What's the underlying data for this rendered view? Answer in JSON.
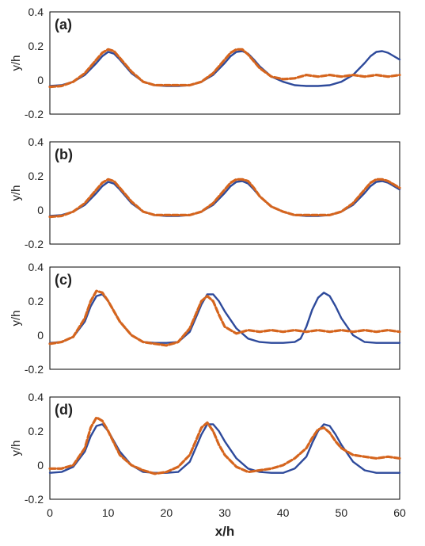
{
  "figure": {
    "xlabel": "x/h",
    "x_ticks": [
      "0",
      "10",
      "20",
      "30",
      "40",
      "50",
      "60"
    ]
  },
  "colors": {
    "model": "#2e4a9b",
    "experiment": "#d5651e",
    "frame": "#000000"
  },
  "chart_data": [
    {
      "type": "line",
      "panel_label": "(a)",
      "ylabel": "y/h",
      "xlim": [
        0,
        60
      ],
      "ylim": [
        -0.2,
        0.4
      ],
      "y_ticks": [
        "0.4",
        "0.2",
        "0",
        "-0.2"
      ],
      "series": [
        {
          "style": "solid",
          "x": [
            0,
            2,
            4,
            6,
            8,
            9,
            10,
            11,
            12,
            14,
            16,
            18,
            20,
            22,
            24,
            26,
            28,
            30,
            31,
            32,
            33,
            34,
            35,
            36,
            38,
            40,
            42,
            44,
            46,
            48,
            50,
            52,
            54,
            55,
            56,
            57,
            58,
            59,
            60
          ],
          "y": [
            -0.035,
            -0.03,
            -0.01,
            0.03,
            0.1,
            0.14,
            0.165,
            0.155,
            0.12,
            0.04,
            -0.01,
            -0.03,
            -0.035,
            -0.035,
            -0.03,
            -0.01,
            0.03,
            0.1,
            0.14,
            0.165,
            0.17,
            0.155,
            0.12,
            0.08,
            0.02,
            -0.01,
            -0.03,
            -0.035,
            -0.035,
            -0.03,
            -0.01,
            0.03,
            0.1,
            0.14,
            0.165,
            0.17,
            0.16,
            0.14,
            0.12
          ]
        },
        {
          "style": "dashed",
          "x": [
            0,
            2,
            4,
            6,
            8,
            9,
            10,
            11,
            12,
            14,
            16,
            18,
            20,
            22,
            24,
            26,
            28,
            30,
            31,
            32,
            33,
            34,
            35,
            36,
            38,
            40,
            42,
            44,
            46,
            48,
            50,
            52,
            54,
            56,
            58,
            60
          ],
          "y": [
            -0.04,
            -0.035,
            -0.01,
            0.04,
            0.12,
            0.16,
            0.18,
            0.17,
            0.13,
            0.05,
            -0.01,
            -0.03,
            -0.03,
            -0.03,
            -0.03,
            -0.01,
            0.04,
            0.12,
            0.16,
            0.18,
            0.18,
            0.15,
            0.11,
            0.07,
            0.02,
            0.005,
            0.01,
            0.03,
            0.02,
            0.03,
            0.02,
            0.03,
            0.02,
            0.03,
            0.02,
            0.03
          ]
        }
      ]
    },
    {
      "type": "line",
      "panel_label": "(b)",
      "ylabel": "y/h",
      "xlim": [
        0,
        60
      ],
      "ylim": [
        -0.2,
        0.4
      ],
      "y_ticks": [
        "0.4",
        "0.2",
        "0",
        "-0.2"
      ],
      "series": [
        {
          "style": "solid",
          "x": [
            0,
            2,
            4,
            6,
            8,
            9,
            10,
            11,
            12,
            14,
            16,
            18,
            20,
            22,
            24,
            26,
            28,
            30,
            31,
            32,
            33,
            34,
            35,
            36,
            38,
            40,
            42,
            44,
            46,
            48,
            50,
            52,
            54,
            55,
            56,
            57,
            58,
            59,
            60
          ],
          "y": [
            -0.035,
            -0.03,
            -0.01,
            0.03,
            0.1,
            0.14,
            0.165,
            0.155,
            0.12,
            0.04,
            -0.01,
            -0.03,
            -0.035,
            -0.035,
            -0.03,
            -0.01,
            0.03,
            0.1,
            0.14,
            0.165,
            0.17,
            0.155,
            0.12,
            0.08,
            0.02,
            -0.01,
            -0.03,
            -0.035,
            -0.035,
            -0.03,
            -0.01,
            0.03,
            0.1,
            0.14,
            0.165,
            0.17,
            0.16,
            0.14,
            0.12
          ]
        },
        {
          "style": "dashed",
          "x": [
            0,
            2,
            4,
            6,
            8,
            9,
            10,
            11,
            12,
            14,
            16,
            18,
            20,
            22,
            24,
            26,
            28,
            30,
            31,
            32,
            33,
            34,
            35,
            36,
            38,
            40,
            42,
            44,
            46,
            48,
            50,
            52,
            54,
            55,
            56,
            57,
            58,
            59,
            60
          ],
          "y": [
            -0.04,
            -0.035,
            -0.01,
            0.04,
            0.12,
            0.16,
            0.18,
            0.17,
            0.13,
            0.05,
            -0.01,
            -0.03,
            -0.03,
            -0.03,
            -0.03,
            -0.01,
            0.04,
            0.12,
            0.16,
            0.18,
            0.18,
            0.17,
            0.13,
            0.08,
            0.02,
            -0.01,
            -0.03,
            -0.03,
            -0.03,
            -0.03,
            -0.01,
            0.04,
            0.12,
            0.16,
            0.18,
            0.18,
            0.17,
            0.15,
            0.13
          ]
        }
      ]
    },
    {
      "type": "line",
      "panel_label": "(c)",
      "ylabel": "y/h",
      "xlim": [
        0,
        60
      ],
      "ylim": [
        -0.2,
        0.4
      ],
      "y_ticks": [
        "0.4",
        "0.2",
        "0",
        "-0.2"
      ],
      "series": [
        {
          "style": "solid",
          "x": [
            0,
            2,
            4,
            6,
            7,
            8,
            9,
            10,
            12,
            14,
            16,
            18,
            20,
            22,
            24,
            25,
            26,
            27,
            28,
            29,
            30,
            32,
            34,
            36,
            38,
            40,
            42,
            43,
            44,
            45,
            46,
            47,
            48,
            49,
            50,
            52,
            54,
            56,
            58,
            60
          ],
          "y": [
            -0.045,
            -0.04,
            -0.01,
            0.08,
            0.17,
            0.23,
            0.24,
            0.2,
            0.08,
            0.0,
            -0.04,
            -0.045,
            -0.045,
            -0.04,
            0.02,
            0.1,
            0.18,
            0.24,
            0.24,
            0.2,
            0.14,
            0.04,
            -0.02,
            -0.04,
            -0.045,
            -0.045,
            -0.04,
            -0.02,
            0.05,
            0.15,
            0.22,
            0.25,
            0.23,
            0.17,
            0.1,
            0.0,
            -0.04,
            -0.045,
            -0.045,
            -0.045
          ]
        },
        {
          "style": "dashed",
          "x": [
            0,
            2,
            4,
            6,
            7,
            8,
            9,
            10,
            12,
            14,
            16,
            18,
            20,
            22,
            24,
            25,
            26,
            27,
            28,
            29,
            30,
            32,
            34,
            36,
            38,
            40,
            42,
            44,
            46,
            48,
            50,
            52,
            54,
            56,
            58,
            60
          ],
          "y": [
            -0.05,
            -0.04,
            -0.01,
            0.1,
            0.2,
            0.26,
            0.25,
            0.2,
            0.08,
            0.0,
            -0.04,
            -0.05,
            -0.06,
            -0.04,
            0.04,
            0.12,
            0.2,
            0.23,
            0.2,
            0.12,
            0.05,
            0.01,
            0.03,
            0.02,
            0.03,
            0.02,
            0.03,
            0.02,
            0.03,
            0.02,
            0.03,
            0.02,
            0.03,
            0.02,
            0.03,
            0.02
          ]
        }
      ]
    },
    {
      "type": "line",
      "panel_label": "(d)",
      "ylabel": "y/h",
      "xlim": [
        0,
        60
      ],
      "ylim": [
        -0.2,
        0.4
      ],
      "y_ticks": [
        "0.4",
        "0.2",
        "0",
        "-0.2"
      ],
      "series": [
        {
          "style": "solid",
          "x": [
            0,
            2,
            4,
            6,
            7,
            8,
            9,
            10,
            12,
            14,
            16,
            18,
            20,
            22,
            24,
            25,
            26,
            27,
            28,
            29,
            30,
            32,
            34,
            36,
            38,
            40,
            42,
            44,
            45,
            46,
            47,
            48,
            49,
            50,
            52,
            54,
            56,
            58,
            60
          ],
          "y": [
            -0.045,
            -0.04,
            -0.01,
            0.08,
            0.17,
            0.23,
            0.24,
            0.2,
            0.08,
            0.0,
            -0.04,
            -0.045,
            -0.045,
            -0.04,
            0.02,
            0.1,
            0.18,
            0.24,
            0.24,
            0.2,
            0.14,
            0.04,
            -0.02,
            -0.04,
            -0.045,
            -0.045,
            -0.02,
            0.05,
            0.13,
            0.2,
            0.24,
            0.23,
            0.18,
            0.12,
            0.02,
            -0.03,
            -0.045,
            -0.045,
            -0.045
          ]
        },
        {
          "style": "dashed",
          "x": [
            0,
            2,
            4,
            6,
            7,
            8,
            9,
            10,
            12,
            14,
            16,
            18,
            20,
            22,
            24,
            25,
            26,
            27,
            28,
            29,
            30,
            32,
            34,
            36,
            38,
            40,
            42,
            44,
            45,
            46,
            47,
            48,
            49,
            50,
            52,
            54,
            56,
            58,
            60
          ],
          "y": [
            -0.02,
            -0.02,
            0.0,
            0.1,
            0.22,
            0.28,
            0.26,
            0.2,
            0.06,
            0.0,
            -0.03,
            -0.05,
            -0.04,
            -0.01,
            0.06,
            0.14,
            0.22,
            0.25,
            0.2,
            0.12,
            0.06,
            -0.01,
            -0.04,
            -0.03,
            -0.02,
            0.0,
            0.04,
            0.1,
            0.16,
            0.21,
            0.22,
            0.19,
            0.14,
            0.1,
            0.06,
            0.05,
            0.04,
            0.05,
            0.04
          ]
        }
      ]
    }
  ]
}
